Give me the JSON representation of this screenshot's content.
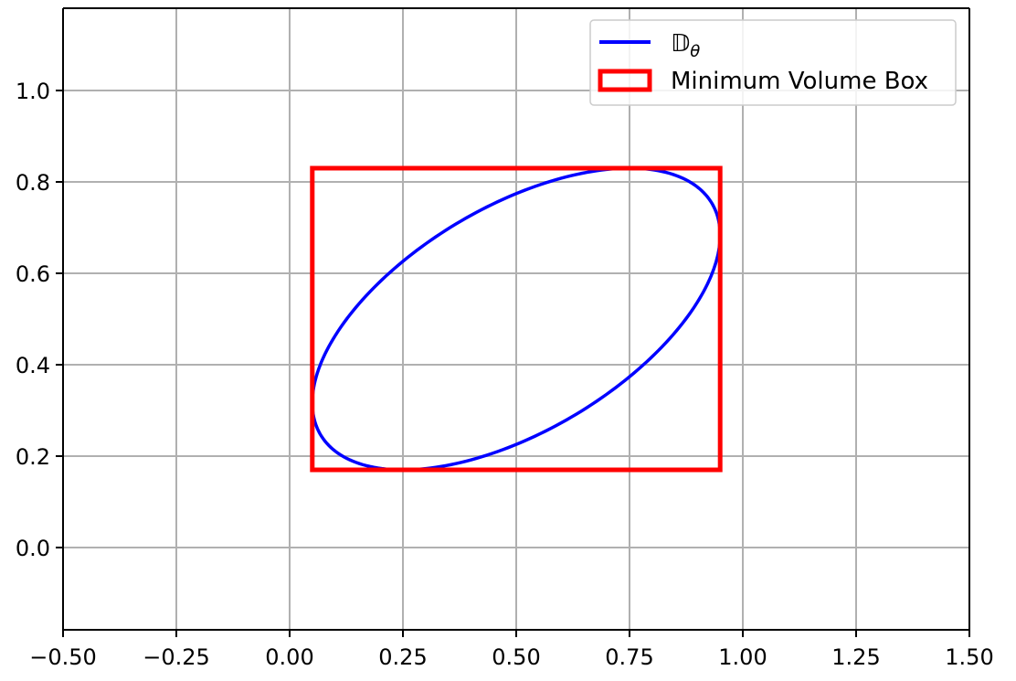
{
  "chart_data": {
    "type": "line",
    "title": "",
    "xlabel": "",
    "ylabel": "",
    "xlim": [
      -0.5,
      1.5
    ],
    "ylim": [
      -0.18,
      1.18
    ],
    "grid": true,
    "legend_position": "top-right",
    "x_ticks": [
      -0.5,
      -0.25,
      0.0,
      0.25,
      0.5,
      0.75,
      1.0,
      1.25,
      1.5
    ],
    "x_tick_labels": [
      "−0.50",
      "−0.25",
      "0.00",
      "0.25",
      "0.50",
      "0.75",
      "1.00",
      "1.25",
      "1.50"
    ],
    "y_ticks": [
      0.0,
      0.2,
      0.4,
      0.6,
      0.8,
      1.0
    ],
    "y_tick_labels": [
      "0.0",
      "0.2",
      "0.4",
      "0.6",
      "0.8",
      "1.0"
    ],
    "series": [
      {
        "name": "𝔻θ",
        "kind": "ellipse",
        "color": "#0000ff",
        "center": [
          0.5,
          0.5
        ],
        "x_extent": [
          0.05,
          0.95
        ],
        "y_extent": [
          0.17,
          0.83
        ],
        "topmost_point": [
          0.75,
          0.83
        ],
        "bottommost_point": [
          0.25,
          0.17
        ],
        "leftmost_point": [
          0.05,
          0.32
        ],
        "rightmost_point": [
          0.95,
          0.68
        ]
      },
      {
        "name": "Minimum Volume Box",
        "kind": "rectangle",
        "color": "#ff0000",
        "x_range": [
          0.05,
          0.95
        ],
        "y_range": [
          0.17,
          0.83
        ]
      }
    ],
    "legend": {
      "entries": [
        {
          "label_main": "𝔻",
          "label_sub": "θ",
          "color": "#0000ff",
          "marker": "line"
        },
        {
          "label": "Minimum Volume Box",
          "color": "#ff0000",
          "marker": "box"
        }
      ]
    }
  }
}
